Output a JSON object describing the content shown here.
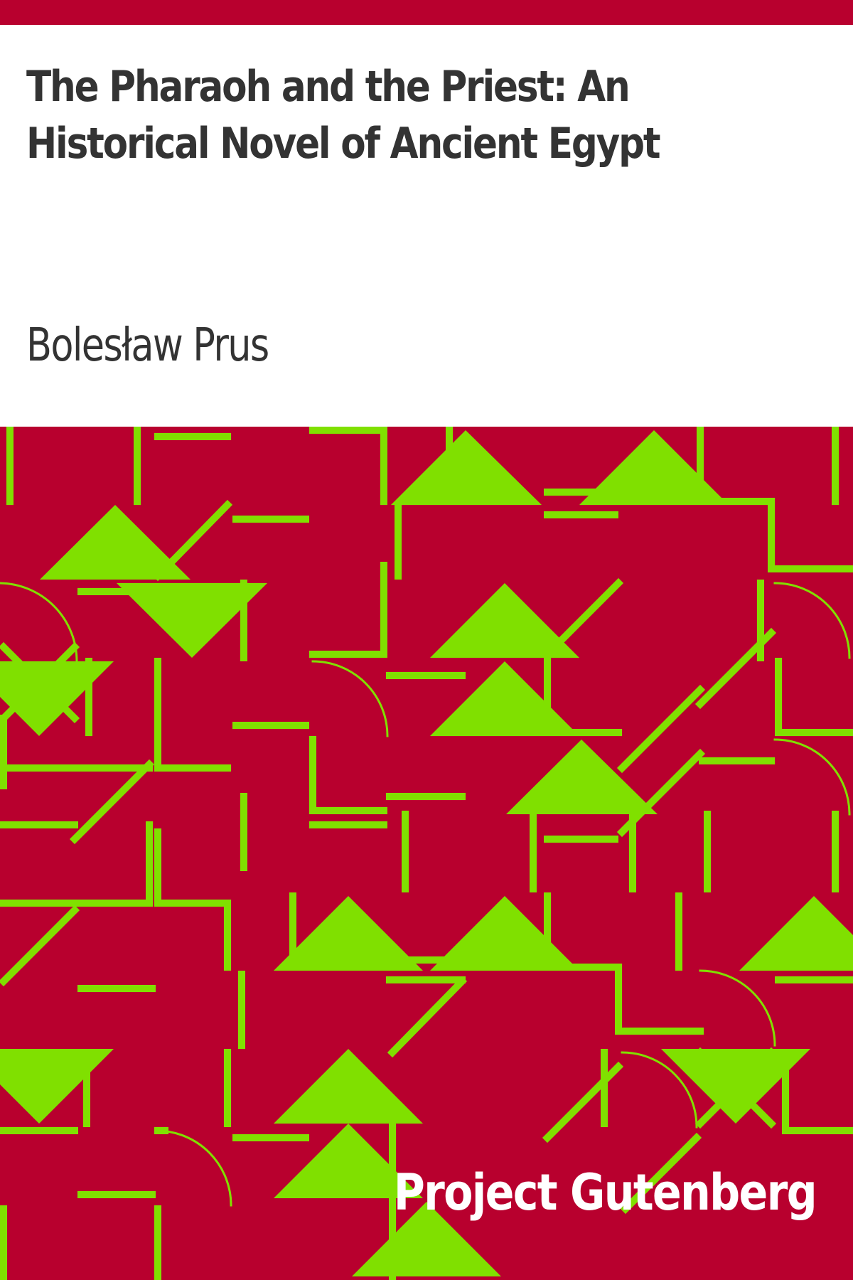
{
  "cover": {
    "title": "The Pharaoh and the Priest: An Historical Novel of Ancient Egypt",
    "author": "Bolesław Prus",
    "publisher": "Project Gutenberg"
  },
  "colors": {
    "background": "#ffffff",
    "accent": "#b8002e",
    "pattern_line": "#80e000",
    "text": "#333333",
    "publisher_text": "#ffffff"
  },
  "pattern_icon": "geometric-pattern-icon"
}
